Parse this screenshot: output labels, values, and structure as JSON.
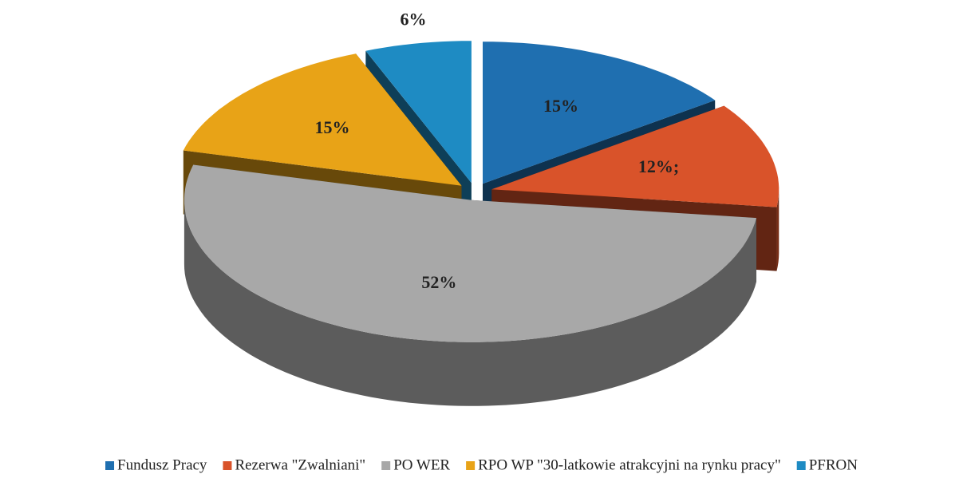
{
  "chart_data": {
    "type": "pie3d",
    "categories": [
      "Fundusz Pracy",
      "Rezerwa \"Zwalniani\"",
      "PO WER",
      "RPO WP \"30-latkowie atrakcyjni na rynku pracy\"",
      "PFRON"
    ],
    "values": [
      15,
      12,
      52,
      15,
      6
    ],
    "value_labels": [
      "15%",
      "12%;",
      "52%",
      "15%",
      "6%"
    ],
    "colors": [
      "#1f6fb0",
      "#d9532a",
      "#a8a8a8",
      "#e8a317",
      "#1e8bc3"
    ],
    "legend": "bottom"
  }
}
